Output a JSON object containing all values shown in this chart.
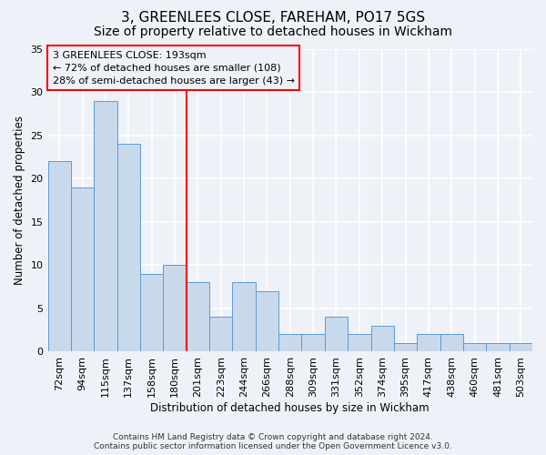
{
  "title1": "3, GREENLEES CLOSE, FAREHAM, PO17 5GS",
  "title2": "Size of property relative to detached houses in Wickham",
  "xlabel": "Distribution of detached houses by size in Wickham",
  "ylabel": "Number of detached properties",
  "categories": [
    "72sqm",
    "94sqm",
    "115sqm",
    "137sqm",
    "158sqm",
    "180sqm",
    "201sqm",
    "223sqm",
    "244sqm",
    "266sqm",
    "288sqm",
    "309sqm",
    "331sqm",
    "352sqm",
    "374sqm",
    "395sqm",
    "417sqm",
    "438sqm",
    "460sqm",
    "481sqm",
    "503sqm"
  ],
  "values": [
    22,
    19,
    29,
    24,
    9,
    10,
    8,
    4,
    8,
    7,
    2,
    2,
    4,
    2,
    3,
    1,
    2,
    2,
    1,
    1,
    1
  ],
  "bar_color": "#c9d9ec",
  "bar_edge_color": "#5b9bd5",
  "annotation_text_line1": "3 GREENLEES CLOSE: 193sqm",
  "annotation_text_line2": "← 72% of detached houses are smaller (108)",
  "annotation_text_line3": "28% of semi-detached houses are larger (43) →",
  "box_color": "red",
  "vline_color": "red",
  "vline_x": 5.5,
  "ylim": [
    0,
    35
  ],
  "yticks": [
    0,
    5,
    10,
    15,
    20,
    25,
    30,
    35
  ],
  "footer_line1": "Contains HM Land Registry data © Crown copyright and database right 2024.",
  "footer_line2": "Contains public sector information licensed under the Open Government Licence v3.0.",
  "bg_color": "#eef2f8",
  "grid_color": "#ffffff",
  "title1_fontsize": 11,
  "title2_fontsize": 10,
  "xlabel_fontsize": 8.5,
  "ylabel_fontsize": 8.5,
  "tick_fontsize": 8,
  "annotation_fontsize": 8,
  "footer_fontsize": 6.5
}
